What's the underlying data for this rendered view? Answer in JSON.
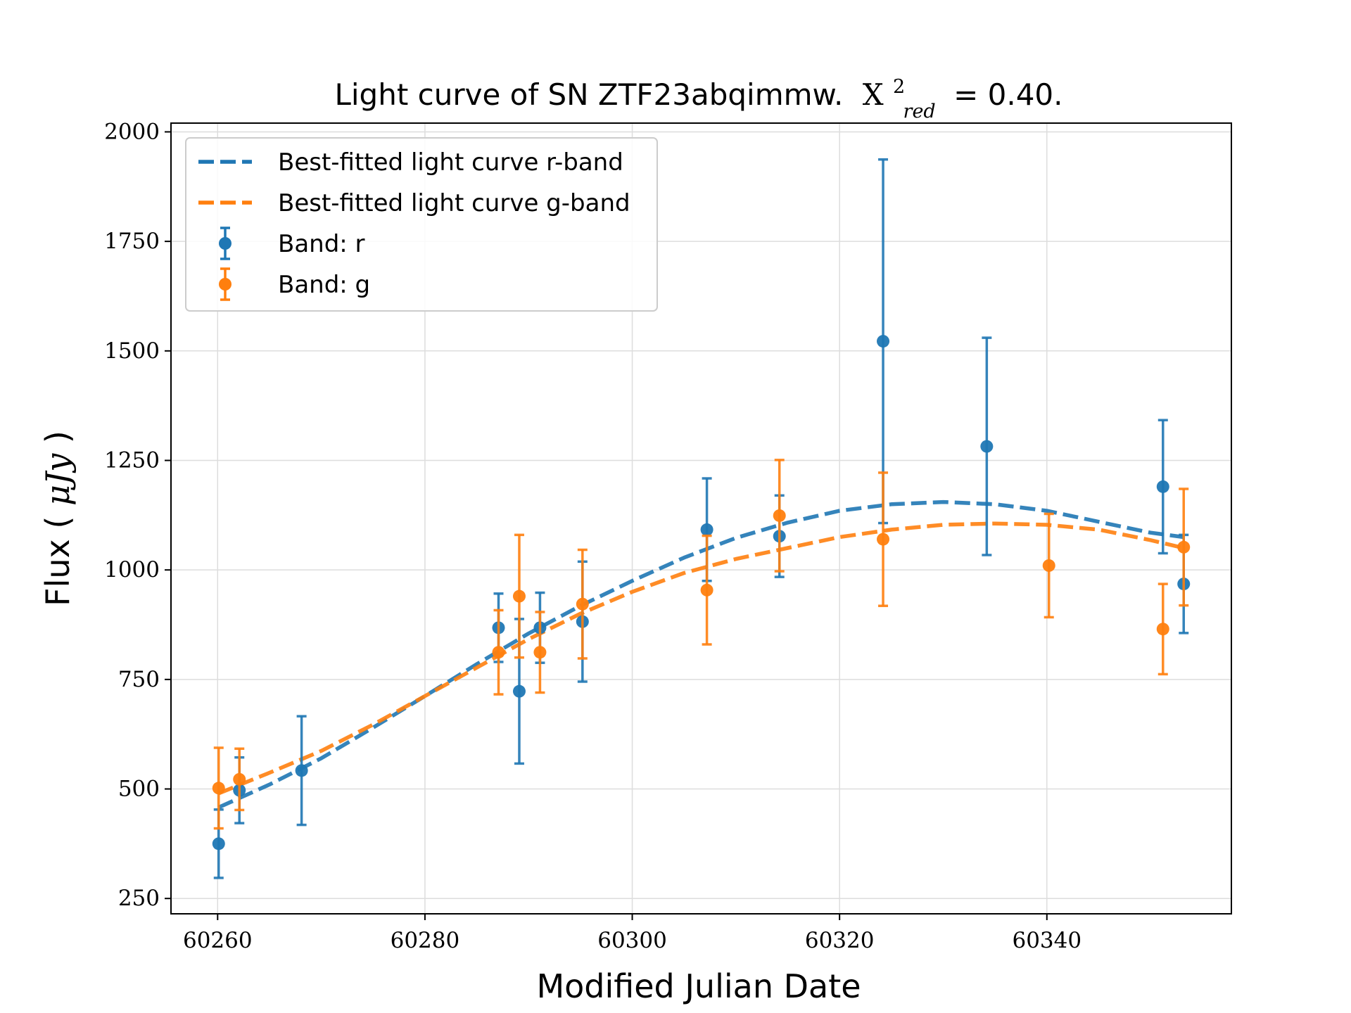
{
  "chart_data": {
    "type": "scatter",
    "title": {
      "prefix": "Light curve of SN ZTF23abqimmw.",
      "symbol": "X",
      "superscript": "2",
      "subscript": "red",
      "equals": "= 0.40."
    },
    "xlabel": "Modified Julian Date",
    "ylabel": {
      "prefix": "Flux (",
      "unit": "μJy",
      "suffix": ")"
    },
    "xlim": [
      60255.5,
      60357.8
    ],
    "ylim": [
      215,
      2020
    ],
    "xticks": [
      60260,
      60280,
      60300,
      60320,
      60340
    ],
    "yticks": [
      250,
      500,
      750,
      1000,
      1250,
      1500,
      1750,
      2000
    ],
    "grid": true,
    "legend_position": "upper-left",
    "colors": {
      "r": "#1f77b4",
      "g": "#ff7f0e"
    },
    "legend": [
      {
        "label": "Best-fitted light curve r-band",
        "kind": "line",
        "band": "r"
      },
      {
        "label": "Best-fitted light curve g-band",
        "kind": "line",
        "band": "g"
      },
      {
        "label": "Band: r",
        "kind": "errorbar",
        "band": "r"
      },
      {
        "label": "Band: g",
        "kind": "errorbar",
        "band": "g"
      }
    ],
    "series": [
      {
        "name": "Band: r",
        "band": "r",
        "points": [
          {
            "x": 60260.1,
            "y": 375,
            "err": 78
          },
          {
            "x": 60262.1,
            "y": 497,
            "err": 75
          },
          {
            "x": 60268.1,
            "y": 542,
            "err": 124
          },
          {
            "x": 60287.1,
            "y": 868,
            "err": 78
          },
          {
            "x": 60289.1,
            "y": 723,
            "err": 165
          },
          {
            "x": 60291.1,
            "y": 868,
            "err": 80
          },
          {
            "x": 60295.2,
            "y": 882,
            "err": 137
          },
          {
            "x": 60307.2,
            "y": 1092,
            "err": 117
          },
          {
            "x": 60314.2,
            "y": 1077,
            "err": 93
          },
          {
            "x": 60324.2,
            "y": 1522,
            "err": 415
          },
          {
            "x": 60334.2,
            "y": 1282,
            "err": 248
          },
          {
            "x": 60351.2,
            "y": 1190,
            "err": 152
          },
          {
            "x": 60353.2,
            "y": 968,
            "err": 112
          }
        ]
      },
      {
        "name": "Band: g",
        "band": "g",
        "points": [
          {
            "x": 60260.1,
            "y": 502,
            "err": 92
          },
          {
            "x": 60262.1,
            "y": 522,
            "err": 70
          },
          {
            "x": 60287.1,
            "y": 812,
            "err": 96
          },
          {
            "x": 60289.1,
            "y": 940,
            "err": 140
          },
          {
            "x": 60291.1,
            "y": 812,
            "err": 92
          },
          {
            "x": 60295.2,
            "y": 922,
            "err": 124
          },
          {
            "x": 60307.2,
            "y": 954,
            "err": 124
          },
          {
            "x": 60314.2,
            "y": 1124,
            "err": 127
          },
          {
            "x": 60324.2,
            "y": 1070,
            "err": 152
          },
          {
            "x": 60340.2,
            "y": 1010,
            "err": 118
          },
          {
            "x": 60351.2,
            "y": 865,
            "err": 103
          },
          {
            "x": 60353.2,
            "y": 1052,
            "err": 133
          }
        ]
      }
    ],
    "fits": [
      {
        "name": "Best-fitted light curve r-band",
        "band": "r",
        "x": [
          60260.1,
          60265,
          60270,
          60275,
          60280,
          60285,
          60290,
          60295,
          60300,
          60305,
          60310,
          60315,
          60320,
          60325,
          60330,
          60335,
          60340,
          60345,
          60350,
          60353.2
        ],
        "y": [
          458,
          510,
          570,
          640,
          712,
          785,
          855,
          918,
          975,
          1028,
          1073,
          1108,
          1135,
          1150,
          1155,
          1150,
          1135,
          1110,
          1085,
          1075
        ]
      },
      {
        "name": "Best-fitted light curve g-band",
        "band": "g",
        "x": [
          60260.1,
          60265,
          60270,
          60275,
          60280,
          60285,
          60290,
          60295,
          60300,
          60305,
          60310,
          60315,
          60320,
          60325,
          60330,
          60335,
          60340,
          60345,
          60350,
          60353.2
        ],
        "y": [
          490,
          537,
          587,
          647,
          712,
          777,
          842,
          900,
          950,
          993,
          1025,
          1050,
          1075,
          1092,
          1103,
          1106,
          1103,
          1092,
          1068,
          1050
        ]
      }
    ]
  }
}
